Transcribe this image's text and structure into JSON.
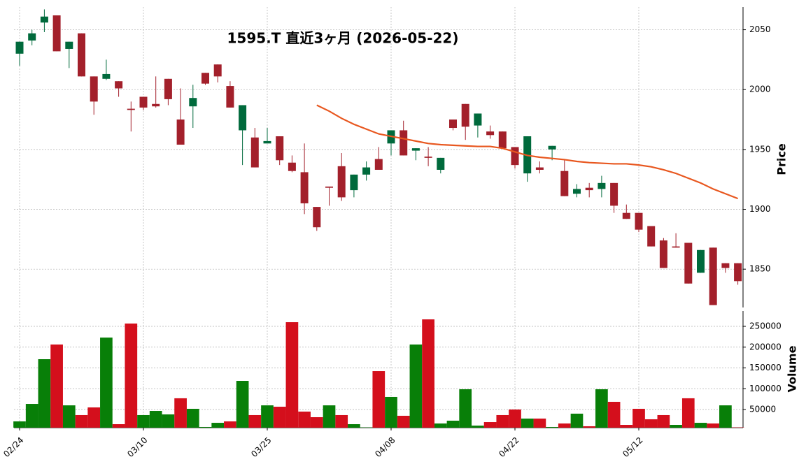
{
  "chart_data": {
    "type": "candlestick",
    "title": "1595.T  直近3ヶ月  (2026-05-22)",
    "categories": [
      "02/24",
      null,
      null,
      null,
      null,
      null,
      null,
      null,
      null,
      null,
      "03/10",
      null,
      null,
      null,
      null,
      null,
      null,
      null,
      null,
      null,
      "03/25",
      null,
      null,
      null,
      null,
      null,
      null,
      null,
      null,
      null,
      "04/08",
      null,
      null,
      null,
      null,
      null,
      null,
      null,
      null,
      null,
      "04/22",
      null,
      null,
      null,
      null,
      null,
      null,
      null,
      null,
      null,
      "05/12",
      null,
      null,
      null,
      null,
      null,
      null,
      null,
      null
    ],
    "open": [
      2030,
      2041,
      2056,
      2062,
      2034,
      2047,
      2011,
      2009,
      2007,
      1984,
      1994,
      1988,
      2009,
      1975,
      1986,
      2014,
      2021,
      2003,
      1966,
      1960,
      1955,
      1961,
      1939,
      1931,
      1902,
      1919,
      1936,
      1916,
      1929,
      1942,
      1955,
      1966,
      1949,
      1944,
      1933,
      1975,
      1988,
      1970,
      1965,
      1965,
      1952,
      1930,
      1935,
      1950,
      1932,
      1913,
      1918,
      1917,
      1922,
      1897,
      1897,
      1886,
      1874,
      1869,
      1872,
      1847,
      1868,
      1855,
      1855
    ],
    "high": [
      2040,
      2050,
      2067,
      2062,
      2040,
      2047,
      2011,
      2025,
      2007,
      1990,
      1994,
      2011,
      2009,
      2001,
      2004,
      2014,
      2021,
      2007,
      1987,
      1968,
      1968,
      1961,
      1945,
      1955,
      1902,
      1919,
      1947,
      1929,
      1940,
      1952,
      1966,
      1974,
      1951,
      1952,
      1943,
      1975,
      1988,
      1980,
      1970,
      1965,
      1952,
      1961,
      1940,
      1953,
      1942,
      1921,
      1922,
      1928,
      1922,
      1904,
      1897,
      1886,
      1876,
      1880,
      1872,
      1866,
      1868,
      1855,
      1855
    ],
    "low": [
      2020,
      2037,
      2048,
      2032,
      2018,
      2011,
      1979,
      2008,
      1994,
      1965,
      1983,
      1985,
      1987,
      1954,
      1968,
      2004,
      2006,
      1985,
      1937,
      1935,
      1955,
      1937,
      1931,
      1896,
      1882,
      1903,
      1907,
      1910,
      1924,
      1933,
      1945,
      1945,
      1941,
      1936,
      1930,
      1966,
      1958,
      1960,
      1959,
      1951,
      1934,
      1923,
      1930,
      1941,
      1911,
      1910,
      1910,
      1910,
      1897,
      1892,
      1881,
      1869,
      1851,
      1868,
      1838,
      1847,
      1820,
      1847,
      1837
    ],
    "close": [
      2040,
      2047,
      2061,
      2032,
      2040,
      2011,
      1990,
      2013,
      2001,
      1983,
      1985,
      1986,
      1992,
      1954,
      1993,
      2005,
      2011,
      1985,
      1987,
      1935,
      1957,
      1941,
      1932,
      1905,
      1885,
      1918,
      1910,
      1929,
      1935,
      1933,
      1966,
      1945,
      1951,
      1943,
      1943,
      1968,
      1969,
      1980,
      1962,
      1951,
      1937,
      1961,
      1933,
      1953,
      1911,
      1917,
      1916,
      1922,
      1903,
      1892,
      1883,
      1869,
      1851,
      1868,
      1838,
      1866,
      1820,
      1851,
      1840
    ],
    "up_color": "#006a3c",
    "down_color": "#a3202b",
    "ylabel": "Price",
    "ylim": [
      1818,
      2069
    ],
    "yticks": [
      1850,
      1900,
      1950,
      2000,
      2050
    ],
    "grid": true,
    "ma": {
      "color": "#e8571f",
      "values": [
        null,
        null,
        null,
        null,
        null,
        null,
        null,
        null,
        null,
        null,
        null,
        null,
        null,
        null,
        null,
        null,
        null,
        null,
        null,
        null,
        null,
        null,
        null,
        null,
        1987,
        1982,
        1976,
        1971,
        1967,
        1963,
        1961,
        1959,
        1957,
        1955,
        1954,
        1953.5,
        1953,
        1952.5,
        1952.5,
        1951,
        1948,
        1945,
        1943.5,
        1942.5,
        1941.5,
        1940,
        1939,
        1938.5,
        1938,
        1938,
        1937,
        1935.5,
        1933,
        1930,
        1926,
        1922,
        1917,
        1913,
        1909
      ]
    },
    "volume": {
      "ylabel": "Volume",
      "up_color": "#087f08",
      "down_color": "#d40f1c",
      "ylim": [
        6300,
        287000
      ],
      "yticks": [
        50000,
        100000,
        150000,
        200000,
        250000
      ],
      "values": [
        21400,
        63400,
        171000,
        206300,
        60000,
        36600,
        55000,
        223000,
        14700,
        256800,
        36600,
        46600,
        38200,
        77000,
        51700,
        8000,
        18000,
        21400,
        118900,
        36600,
        60000,
        56700,
        260000,
        45000,
        31500,
        60000,
        36600,
        14700,
        7000,
        142400,
        80300,
        34900,
        206300,
        266800,
        16400,
        23100,
        98700,
        11300,
        19700,
        36600,
        50000,
        28200,
        28200,
        8000,
        16400,
        40000,
        9700,
        98700,
        68500,
        13000,
        51700,
        26500,
        36600,
        13000,
        77000,
        18000,
        16400,
        60000,
        7000
      ]
    }
  }
}
